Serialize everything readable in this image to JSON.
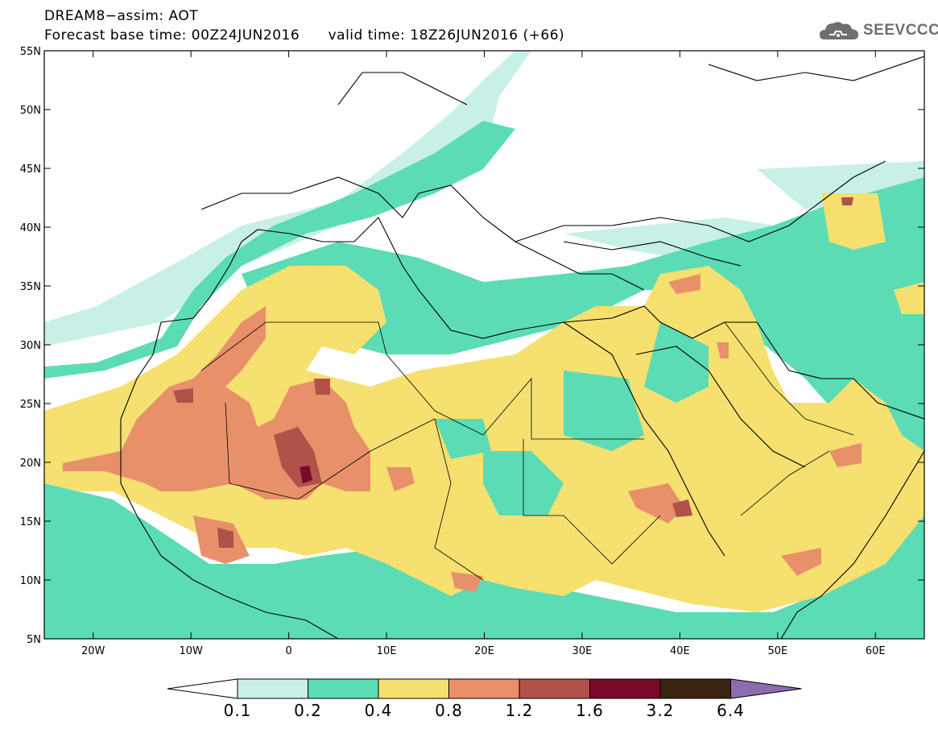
{
  "header": {
    "line1": "DREAM8−assim: AOT",
    "base_time": "Forecast base time: 00Z24JUN2016",
    "valid_time": "valid time: 18Z26JUN2016 (+66)"
  },
  "logo": {
    "text": "SEEVCCC",
    "icon": "cloud-icon"
  },
  "map": {
    "variable": "AOT",
    "lat_range": [
      5,
      55
    ],
    "lon_range": [
      -25,
      65
    ],
    "lat_ticks": [
      "55N",
      "50N",
      "45N",
      "40N",
      "35N",
      "30N",
      "25N",
      "20N",
      "15N",
      "10N",
      "5N"
    ],
    "lon_ticks": [
      "20W",
      "10W",
      "0",
      "10E",
      "20E",
      "30E",
      "40E",
      "50E",
      "60E"
    ]
  },
  "colorbar": {
    "levels": [
      "0.1",
      "0.2",
      "0.4",
      "0.8",
      "1.2",
      "1.6",
      "3.2",
      "6.4"
    ],
    "colors": [
      "#c8f0e6",
      "#5cdcb4",
      "#f5e070",
      "#e8906a",
      "#b0524a",
      "#7a0a2a",
      "#3a2410",
      "#8c6cb0"
    ],
    "under_color": "#ffffff"
  }
}
